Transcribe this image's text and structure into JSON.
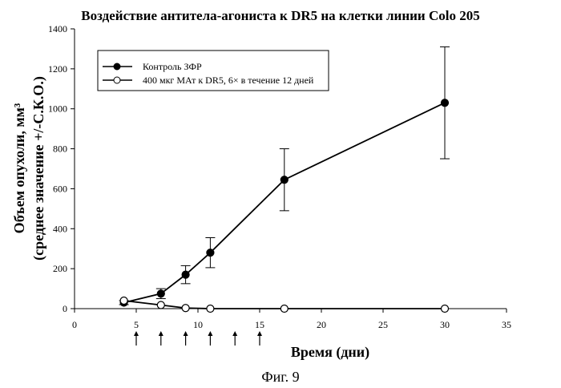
{
  "chart_data": {
    "type": "line",
    "title": "Воздействие антитела-агониста к DR5 на клетки линии Colo 205",
    "xlabel": "Время (дни)",
    "ylabel": "Объем опухоли, мм³",
    "ylabel2": "(среднее значение +/-С.К.О.)",
    "xlim": [
      0,
      35
    ],
    "ylim": [
      0,
      1400
    ],
    "xticks": [
      "0",
      "5",
      "10",
      "15",
      "20",
      "25",
      "30",
      "35"
    ],
    "yticks": [
      "0",
      "200",
      "400",
      "600",
      "800",
      "1000",
      "1200",
      "1400"
    ],
    "legend_position": "top-left",
    "dosing_days": [
      5,
      7,
      9,
      11,
      13,
      15
    ],
    "series": [
      {
        "name": "Контроль ЗФР",
        "marker": "filled-circle",
        "color": "#000000",
        "x": [
          4,
          7,
          9,
          11,
          17,
          30
        ],
        "y": [
          30,
          75,
          170,
          280,
          645,
          1030
        ],
        "err": [
          10,
          25,
          45,
          75,
          155,
          280
        ]
      },
      {
        "name": "400 мкг МАт к DR5, 6× в течение 12 дней",
        "marker": "open-circle",
        "color": "#000000",
        "x": [
          4,
          7,
          9,
          11,
          17,
          30
        ],
        "y": [
          40,
          18,
          3,
          0,
          0,
          0
        ],
        "err": [
          0,
          0,
          0,
          0,
          0,
          0
        ]
      }
    ]
  },
  "caption": "Фиг. 9"
}
